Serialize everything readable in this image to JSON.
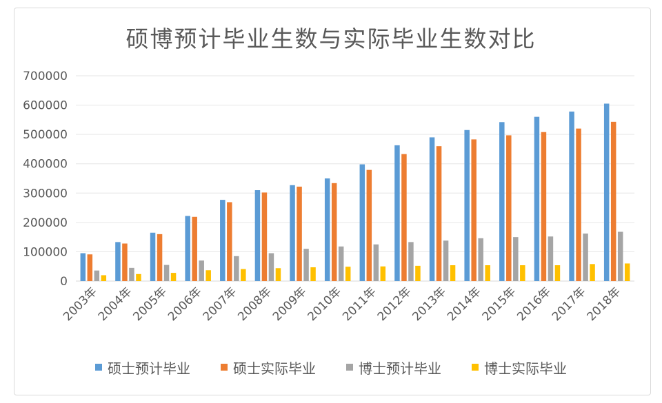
{
  "chart_data": {
    "type": "bar",
    "title": "硕博预计毕业生数与实际毕业生数对比",
    "categories": [
      "2003年",
      "2004年",
      "2005年",
      "2006年",
      "2007年",
      "2008年",
      "2009年",
      "2010年",
      "2011年",
      "2012年",
      "2013年",
      "2014年",
      "2015年",
      "2016年",
      "2017年",
      "2018年"
    ],
    "ylim": [
      0,
      700000
    ],
    "yticks": [
      0,
      100000,
      200000,
      300000,
      400000,
      500000,
      600000,
      700000
    ],
    "ytick_labels": [
      "0",
      "100000",
      "200000",
      "300000",
      "400000",
      "500000",
      "600000",
      "700000"
    ],
    "grid": true,
    "legend_position": "bottom",
    "series": [
      {
        "name": "硕士预计毕业",
        "color": "#5b9bd5",
        "values": [
          95000,
          133000,
          165000,
          222000,
          277000,
          310000,
          327000,
          350000,
          398000,
          463000,
          490000,
          515000,
          542000,
          560000,
          578000,
          605000
        ]
      },
      {
        "name": "硕士实际毕业",
        "color": "#ed7d31",
        "values": [
          91000,
          128000,
          160000,
          219000,
          269000,
          302000,
          322000,
          334000,
          379000,
          433000,
          460000,
          483000,
          497000,
          508000,
          520000,
          543000
        ]
      },
      {
        "name": "博士预计毕业",
        "color": "#a5a5a5",
        "values": [
          36000,
          45000,
          55000,
          70000,
          85000,
          95000,
          110000,
          118000,
          125000,
          133000,
          138000,
          146000,
          150000,
          152000,
          162000,
          168000
        ]
      },
      {
        "name": "博士实际毕业",
        "color": "#ffc000",
        "values": [
          20000,
          24000,
          28000,
          37000,
          41000,
          44000,
          47000,
          49000,
          50000,
          52000,
          54000,
          54000,
          54000,
          54000,
          58000,
          60000
        ]
      }
    ]
  }
}
